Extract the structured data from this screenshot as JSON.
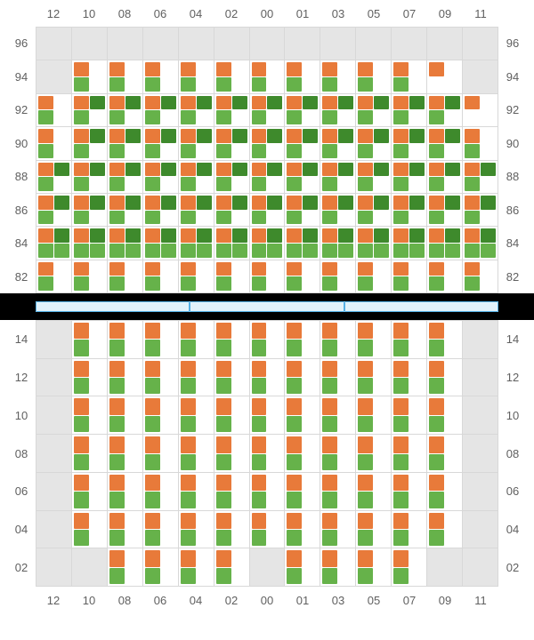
{
  "colors": {
    "orange": "#e87a3a",
    "green": "#66b24a",
    "darkgreen": "#3e8a2c",
    "empty": "#e5e5e5",
    "filled": "#ffffff",
    "grid": "#d8d8d8",
    "label": "#606060",
    "divider_bg": "#000000",
    "divider_fill": "#e1f2fb",
    "divider_border": "#54b0e6"
  },
  "col_labels": [
    "12",
    "10",
    "08",
    "06",
    "04",
    "02",
    "00",
    "01",
    "03",
    "05",
    "07",
    "09",
    "11"
  ],
  "top": {
    "row_labels": [
      "96",
      "94",
      "92",
      "90",
      "88",
      "86",
      "84",
      "82"
    ],
    "rows": [
      [
        null,
        null,
        null,
        null,
        null,
        null,
        null,
        null,
        null,
        null,
        null,
        null,
        null
      ],
      [
        null,
        [
          "o",
          "",
          "g",
          ""
        ],
        [
          "o",
          "",
          "g",
          ""
        ],
        [
          "o",
          "",
          "g",
          ""
        ],
        [
          "o",
          "",
          "g",
          ""
        ],
        [
          "o",
          "",
          "g",
          ""
        ],
        [
          "o",
          "",
          "g",
          ""
        ],
        [
          "o",
          "",
          "g",
          ""
        ],
        [
          "o",
          "",
          "g",
          ""
        ],
        [
          "o",
          "",
          "g",
          ""
        ],
        [
          "o",
          "",
          "g",
          ""
        ],
        [
          "o",
          "",
          "",
          ""
        ],
        null
      ],
      [
        [
          "o",
          "",
          "g",
          ""
        ],
        [
          "o",
          "d",
          "g",
          ""
        ],
        [
          "o",
          "d",
          "g",
          ""
        ],
        [
          "o",
          "d",
          "g",
          ""
        ],
        [
          "o",
          "d",
          "g",
          ""
        ],
        [
          "o",
          "d",
          "g",
          ""
        ],
        [
          "o",
          "d",
          "g",
          ""
        ],
        [
          "o",
          "d",
          "g",
          ""
        ],
        [
          "o",
          "d",
          "g",
          ""
        ],
        [
          "o",
          "d",
          "g",
          ""
        ],
        [
          "o",
          "d",
          "g",
          ""
        ],
        [
          "o",
          "d",
          "g",
          ""
        ],
        [
          "o",
          "",
          "",
          ""
        ]
      ],
      [
        [
          "o",
          "",
          "g",
          ""
        ],
        [
          "o",
          "d",
          "g",
          ""
        ],
        [
          "o",
          "d",
          "g",
          ""
        ],
        [
          "o",
          "d",
          "g",
          ""
        ],
        [
          "o",
          "d",
          "g",
          ""
        ],
        [
          "o",
          "d",
          "g",
          ""
        ],
        [
          "o",
          "d",
          "g",
          ""
        ],
        [
          "o",
          "d",
          "g",
          ""
        ],
        [
          "o",
          "d",
          "g",
          ""
        ],
        [
          "o",
          "d",
          "g",
          ""
        ],
        [
          "o",
          "d",
          "g",
          ""
        ],
        [
          "o",
          "d",
          "g",
          ""
        ],
        [
          "o",
          "",
          "g",
          ""
        ]
      ],
      [
        [
          "o",
          "d",
          "g",
          ""
        ],
        [
          "o",
          "d",
          "g",
          ""
        ],
        [
          "o",
          "d",
          "g",
          ""
        ],
        [
          "o",
          "d",
          "g",
          ""
        ],
        [
          "o",
          "d",
          "g",
          ""
        ],
        [
          "o",
          "d",
          "g",
          ""
        ],
        [
          "o",
          "d",
          "g",
          ""
        ],
        [
          "o",
          "d",
          "g",
          ""
        ],
        [
          "o",
          "d",
          "g",
          ""
        ],
        [
          "o",
          "d",
          "g",
          ""
        ],
        [
          "o",
          "d",
          "g",
          ""
        ],
        [
          "o",
          "d",
          "g",
          ""
        ],
        [
          "o",
          "d",
          "g",
          ""
        ]
      ],
      [
        [
          "o",
          "d",
          "g",
          ""
        ],
        [
          "o",
          "d",
          "g",
          ""
        ],
        [
          "o",
          "d",
          "g",
          ""
        ],
        [
          "o",
          "d",
          "g",
          ""
        ],
        [
          "o",
          "d",
          "g",
          ""
        ],
        [
          "o",
          "d",
          "g",
          ""
        ],
        [
          "o",
          "d",
          "g",
          ""
        ],
        [
          "o",
          "d",
          "g",
          ""
        ],
        [
          "o",
          "d",
          "g",
          ""
        ],
        [
          "o",
          "d",
          "g",
          ""
        ],
        [
          "o",
          "d",
          "g",
          ""
        ],
        [
          "o",
          "d",
          "g",
          ""
        ],
        [
          "o",
          "d",
          "g",
          ""
        ]
      ],
      [
        [
          "o",
          "d",
          "g",
          "g"
        ],
        [
          "o",
          "d",
          "g",
          "g"
        ],
        [
          "o",
          "d",
          "g",
          "g"
        ],
        [
          "o",
          "d",
          "g",
          "g"
        ],
        [
          "o",
          "d",
          "g",
          "g"
        ],
        [
          "o",
          "d",
          "g",
          "g"
        ],
        [
          "o",
          "d",
          "g",
          "g"
        ],
        [
          "o",
          "d",
          "g",
          "g"
        ],
        [
          "o",
          "d",
          "g",
          "g"
        ],
        [
          "o",
          "d",
          "g",
          "g"
        ],
        [
          "o",
          "d",
          "g",
          "g"
        ],
        [
          "o",
          "d",
          "g",
          "g"
        ],
        [
          "o",
          "d",
          "g",
          "g"
        ]
      ],
      [
        [
          "o",
          "",
          "g",
          ""
        ],
        [
          "o",
          "",
          "g",
          ""
        ],
        [
          "o",
          "",
          "g",
          ""
        ],
        [
          "o",
          "",
          "g",
          ""
        ],
        [
          "o",
          "",
          "g",
          ""
        ],
        [
          "o",
          "",
          "g",
          ""
        ],
        [
          "o",
          "",
          "g",
          ""
        ],
        [
          "o",
          "",
          "g",
          ""
        ],
        [
          "o",
          "",
          "g",
          ""
        ],
        [
          "o",
          "",
          "g",
          ""
        ],
        [
          "o",
          "",
          "g",
          ""
        ],
        [
          "o",
          "",
          "g",
          ""
        ],
        [
          "o",
          "",
          "g",
          ""
        ]
      ]
    ]
  },
  "bottom": {
    "row_labels": [
      "14",
      "12",
      "10",
      "08",
      "06",
      "04",
      "02"
    ],
    "rows": [
      [
        null,
        [
          "o",
          "",
          "g",
          ""
        ],
        [
          "o",
          "",
          "g",
          ""
        ],
        [
          "o",
          "",
          "g",
          ""
        ],
        [
          "o",
          "",
          "g",
          ""
        ],
        [
          "o",
          "",
          "g",
          ""
        ],
        [
          "o",
          "",
          "g",
          ""
        ],
        [
          "o",
          "",
          "g",
          ""
        ],
        [
          "o",
          "",
          "g",
          ""
        ],
        [
          "o",
          "",
          "g",
          ""
        ],
        [
          "o",
          "",
          "g",
          ""
        ],
        [
          "o",
          "",
          "g",
          ""
        ],
        null
      ],
      [
        null,
        [
          "o",
          "",
          "g",
          ""
        ],
        [
          "o",
          "",
          "g",
          ""
        ],
        [
          "o",
          "",
          "g",
          ""
        ],
        [
          "o",
          "",
          "g",
          ""
        ],
        [
          "o",
          "",
          "g",
          ""
        ],
        [
          "o",
          "",
          "g",
          ""
        ],
        [
          "o",
          "",
          "g",
          ""
        ],
        [
          "o",
          "",
          "g",
          ""
        ],
        [
          "o",
          "",
          "g",
          ""
        ],
        [
          "o",
          "",
          "g",
          ""
        ],
        [
          "o",
          "",
          "g",
          ""
        ],
        null
      ],
      [
        null,
        [
          "o",
          "",
          "g",
          ""
        ],
        [
          "o",
          "",
          "g",
          ""
        ],
        [
          "o",
          "",
          "g",
          ""
        ],
        [
          "o",
          "",
          "g",
          ""
        ],
        [
          "o",
          "",
          "g",
          ""
        ],
        [
          "o",
          "",
          "g",
          ""
        ],
        [
          "o",
          "",
          "g",
          ""
        ],
        [
          "o",
          "",
          "g",
          ""
        ],
        [
          "o",
          "",
          "g",
          ""
        ],
        [
          "o",
          "",
          "g",
          ""
        ],
        [
          "o",
          "",
          "g",
          ""
        ],
        null
      ],
      [
        null,
        [
          "o",
          "",
          "g",
          ""
        ],
        [
          "o",
          "",
          "g",
          ""
        ],
        [
          "o",
          "",
          "g",
          ""
        ],
        [
          "o",
          "",
          "g",
          ""
        ],
        [
          "o",
          "",
          "g",
          ""
        ],
        [
          "o",
          "",
          "g",
          ""
        ],
        [
          "o",
          "",
          "g",
          ""
        ],
        [
          "o",
          "",
          "g",
          ""
        ],
        [
          "o",
          "",
          "g",
          ""
        ],
        [
          "o",
          "",
          "g",
          ""
        ],
        [
          "o",
          "",
          "g",
          ""
        ],
        null
      ],
      [
        null,
        [
          "o",
          "",
          "g",
          ""
        ],
        [
          "o",
          "",
          "g",
          ""
        ],
        [
          "o",
          "",
          "g",
          ""
        ],
        [
          "o",
          "",
          "g",
          ""
        ],
        [
          "o",
          "",
          "g",
          ""
        ],
        [
          "o",
          "",
          "g",
          ""
        ],
        [
          "o",
          "",
          "g",
          ""
        ],
        [
          "o",
          "",
          "g",
          ""
        ],
        [
          "o",
          "",
          "g",
          ""
        ],
        [
          "o",
          "",
          "g",
          ""
        ],
        [
          "o",
          "",
          "g",
          ""
        ],
        null
      ],
      [
        null,
        [
          "o",
          "",
          "g",
          ""
        ],
        [
          "o",
          "",
          "g",
          ""
        ],
        [
          "o",
          "",
          "g",
          ""
        ],
        [
          "o",
          "",
          "g",
          ""
        ],
        [
          "o",
          "",
          "g",
          ""
        ],
        [
          "o",
          "",
          "g",
          ""
        ],
        [
          "o",
          "",
          "g",
          ""
        ],
        [
          "o",
          "",
          "g",
          ""
        ],
        [
          "o",
          "",
          "g",
          ""
        ],
        [
          "o",
          "",
          "g",
          ""
        ],
        [
          "o",
          "",
          "g",
          ""
        ],
        null
      ],
      [
        null,
        null,
        [
          "o",
          "",
          "g",
          ""
        ],
        [
          "o",
          "",
          "g",
          ""
        ],
        [
          "o",
          "",
          "g",
          ""
        ],
        [
          "o",
          "",
          "g",
          ""
        ],
        null,
        [
          "o",
          "",
          "g",
          ""
        ],
        [
          "o",
          "",
          "g",
          ""
        ],
        [
          "o",
          "",
          "g",
          ""
        ],
        [
          "o",
          "",
          "g",
          ""
        ],
        null,
        null
      ]
    ]
  },
  "divider_segments": 3
}
